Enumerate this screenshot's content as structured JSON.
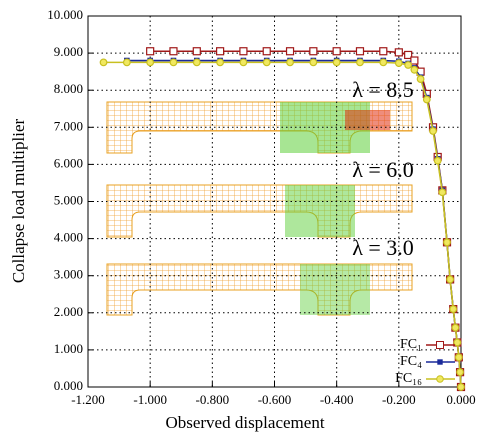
{
  "chart_data": {
    "type": "line",
    "xlabel": "Observed displacement",
    "ylabel": "Collapse load multiplier",
    "xlim": [
      -1.2,
      0.0
    ],
    "ylim": [
      0,
      10
    ],
    "xticks": [
      {
        "value": -1.2,
        "label": "-1.200"
      },
      {
        "value": -1.0,
        "label": "-1.000"
      },
      {
        "value": -0.8,
        "label": "-0.800"
      },
      {
        "value": -0.6,
        "label": "-0.600"
      },
      {
        "value": -0.4,
        "label": "-0.400"
      },
      {
        "value": -0.2,
        "label": "-0.200"
      },
      {
        "value": 0,
        "label": "0.000"
      }
    ],
    "yticks": [
      {
        "value": 0,
        "label": "0.000"
      },
      {
        "value": 1,
        "label": "1.000"
      },
      {
        "value": 2,
        "label": "2.000"
      },
      {
        "value": 3,
        "label": "3.000"
      },
      {
        "value": 4,
        "label": "4.000"
      },
      {
        "value": 5,
        "label": "5.000"
      },
      {
        "value": 6,
        "label": "6.000"
      },
      {
        "value": 7,
        "label": "7.000"
      },
      {
        "value": 8,
        "label": "8.000"
      },
      {
        "value": 9,
        "label": "9.000"
      },
      {
        "value": 10,
        "label": "10.000"
      }
    ],
    "grid": true,
    "legend": "lower right",
    "annotations": [
      "λ = 8.5",
      "λ = 6.0",
      "λ = 3.0"
    ],
    "series": [
      {
        "name": "FC₁",
        "color": "#a01818",
        "marker": "square",
        "x": [
          -1.0,
          -0.925,
          -0.85,
          -0.775,
          -0.7,
          -0.625,
          -0.55,
          -0.475,
          -0.4,
          -0.325,
          -0.25,
          -0.2,
          -0.17,
          -0.15,
          -0.13,
          -0.11,
          -0.09,
          -0.075,
          -0.06,
          -0.045,
          -0.035,
          -0.025,
          -0.018,
          -0.012,
          -0.007,
          -0.003,
          0.0
        ],
        "values": [
          9.05,
          9.05,
          9.05,
          9.05,
          9.05,
          9.05,
          9.05,
          9.05,
          9.05,
          9.05,
          9.05,
          9.02,
          8.95,
          8.8,
          8.5,
          7.9,
          7.0,
          6.2,
          5.3,
          3.9,
          2.9,
          2.1,
          1.6,
          1.2,
          0.8,
          0.4,
          0.0
        ]
      },
      {
        "name": "FC₄",
        "color": "#1a2a9a",
        "marker": "smallsquare",
        "x": [
          -1.075,
          -1.0,
          -0.925,
          -0.85,
          -0.775,
          -0.7,
          -0.625,
          -0.55,
          -0.475,
          -0.4,
          -0.325,
          -0.25,
          -0.2,
          -0.17,
          -0.15,
          -0.13,
          -0.11,
          -0.09,
          -0.075,
          -0.06,
          -0.045,
          -0.035,
          -0.025,
          -0.018,
          -0.012,
          -0.007,
          -0.003,
          0.0
        ],
        "values": [
          8.8,
          8.8,
          8.8,
          8.8,
          8.8,
          8.8,
          8.8,
          8.8,
          8.8,
          8.8,
          8.8,
          8.8,
          8.78,
          8.72,
          8.6,
          8.35,
          7.8,
          6.95,
          6.15,
          5.3,
          3.9,
          2.9,
          2.1,
          1.6,
          1.2,
          0.8,
          0.4,
          0.0
        ]
      },
      {
        "name": "FC₁₆",
        "color": "#c8c020",
        "marker": "circle",
        "x": [
          -1.15,
          -1.075,
          -1.0,
          -0.925,
          -0.85,
          -0.775,
          -0.7,
          -0.625,
          -0.55,
          -0.475,
          -0.4,
          -0.325,
          -0.25,
          -0.2,
          -0.17,
          -0.15,
          -0.13,
          -0.11,
          -0.09,
          -0.075,
          -0.06,
          -0.045,
          -0.035,
          -0.025,
          -0.018,
          -0.012,
          -0.007,
          -0.003,
          0.0
        ],
        "values": [
          8.75,
          8.75,
          8.75,
          8.75,
          8.75,
          8.75,
          8.75,
          8.75,
          8.75,
          8.75,
          8.75,
          8.75,
          8.75,
          8.73,
          8.68,
          8.55,
          8.3,
          7.75,
          6.9,
          6.1,
          5.25,
          3.9,
          2.9,
          2.1,
          1.6,
          1.2,
          0.8,
          0.4,
          0.0
        ]
      }
    ]
  }
}
